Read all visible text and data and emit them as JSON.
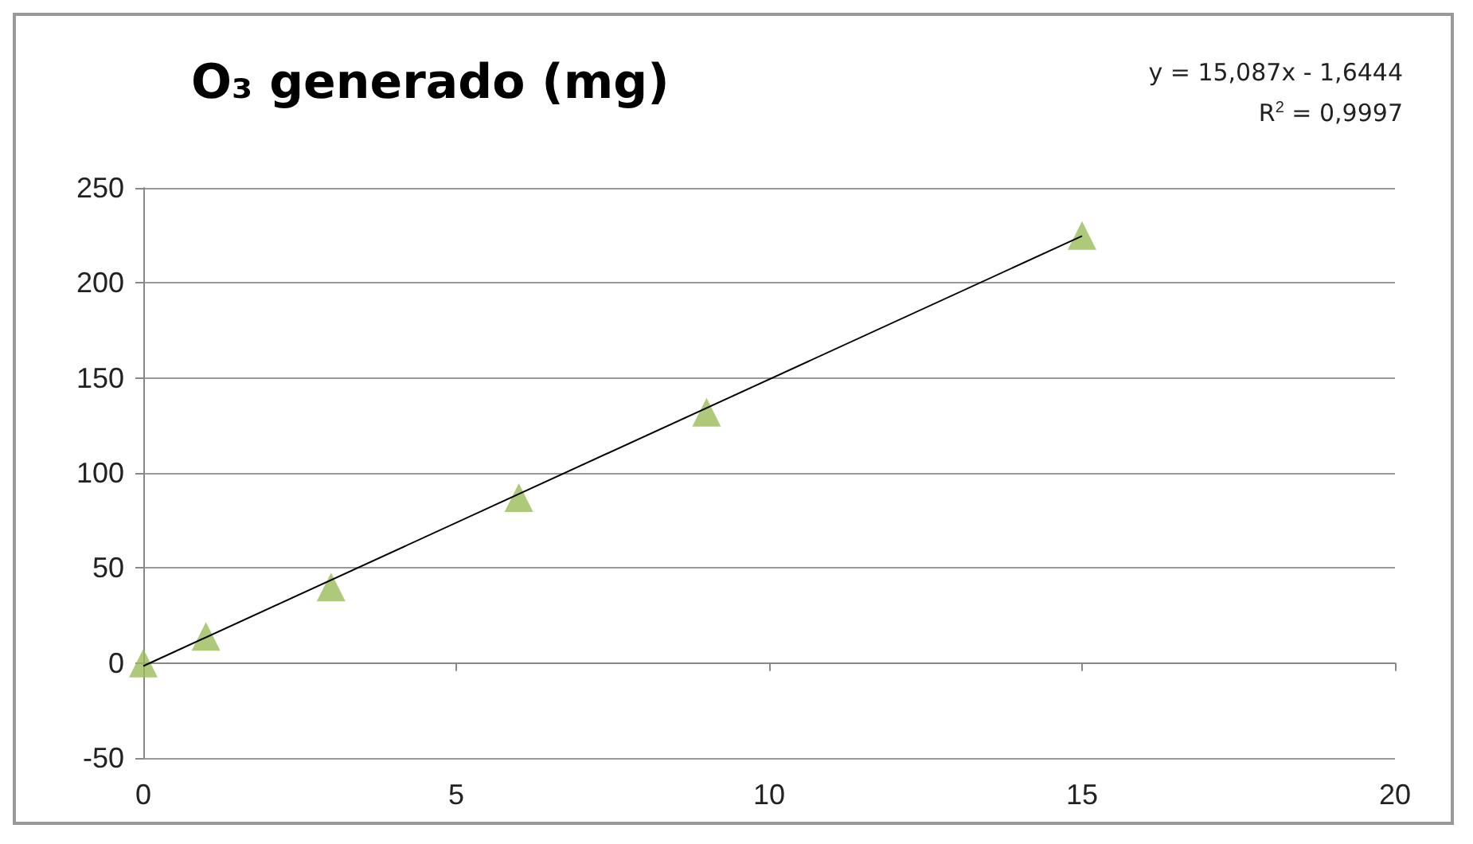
{
  "chart_data": {
    "type": "scatter",
    "title": "O₃ generado (mg)",
    "annotations": [
      "y = 15,087x - 1,6444",
      "R$^{2}$ = 0,9997"
    ],
    "x": [
      0,
      1,
      3,
      6,
      9,
      15
    ],
    "series": [
      {
        "type": "scatter",
        "color": "#9bbb59",
        "marker": "triangle",
        "values": [
          0,
          14,
          40,
          87,
          132,
          225
        ]
      },
      {
        "type": "line",
        "color": "#000000",
        "marker": "none",
        "line_style": "solid",
        "x": [
          0,
          15
        ],
        "values": [
          -1.6,
          224.7
        ]
      }
    ],
    "xlim": [
      0,
      20
    ],
    "xticks": [
      0,
      5,
      10,
      15,
      20
    ],
    "ylim": [
      -50,
      250
    ],
    "yticks": [
      -50,
      0,
      50,
      100,
      150,
      200,
      250
    ],
    "grid": "y"
  }
}
